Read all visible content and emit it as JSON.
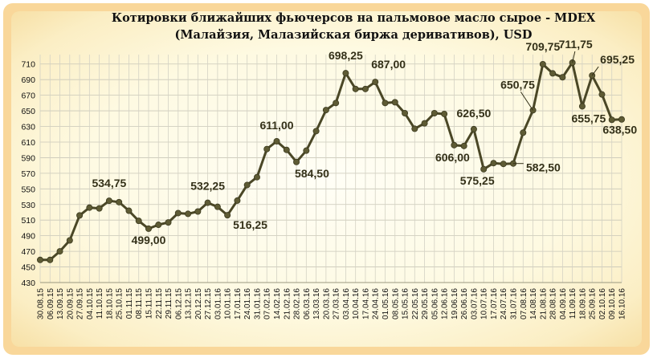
{
  "chart_data": {
    "type": "line",
    "title": [
      "Котировки ближайших фьючерсов на пальмовое масло сырое - MDEX",
      "(Малайзия, Малазийская биржа деривативов), USD"
    ],
    "ylim": [
      430,
      720
    ],
    "yticks": [
      430,
      450,
      470,
      490,
      510,
      530,
      550,
      570,
      590,
      610,
      630,
      650,
      670,
      690,
      710
    ],
    "grid": true,
    "x": [
      "30.08.15",
      "06.09.15",
      "13.09.15",
      "20.09.15",
      "27.09.15",
      "04.10.15",
      "11.10.15",
      "18.10.15",
      "25.10.15",
      "01.11.15",
      "08.11.15",
      "15.11.15",
      "22.11.15",
      "29.11.15",
      "06.12.15",
      "13.12.15",
      "20.12.15",
      "27.12.15",
      "03.01.16",
      "10.01.16",
      "17.01.16",
      "24.01.16",
      "31.01.16",
      "07.02.16",
      "14.02.16",
      "21.02.16",
      "28.02.16",
      "06.03.16",
      "13.03.16",
      "20.03.16",
      "27.03.16",
      "03.04.16",
      "10.04.16",
      "17.04.16",
      "24.04.16",
      "01.05.16",
      "08.05.16",
      "15.05.16",
      "22.05.16",
      "29.05.16",
      "05.06.16",
      "12.06.16",
      "19.06.16",
      "26.06.16",
      "03.07.16",
      "10.07.16",
      "17.07.16",
      "24.07.16",
      "31.07.16",
      "07.08.16",
      "14.08.16",
      "21.08.16",
      "28.08.16",
      "04.09.16",
      "11.09.16",
      "18.09.16",
      "25.09.16",
      "02.10.16",
      "09.10.16",
      "16.10.16"
    ],
    "values": [
      459,
      459,
      470,
      484,
      516,
      526,
      525,
      534.75,
      533,
      522,
      509,
      499,
      504,
      507,
      519,
      518,
      521,
      532.25,
      527,
      516.25,
      535,
      555,
      565,
      601,
      611,
      600,
      584.5,
      599,
      624,
      651,
      660,
      698.25,
      678,
      678,
      687,
      660,
      661,
      647,
      627,
      634,
      647,
      646,
      606,
      605,
      626.5,
      575.25,
      583,
      582,
      582.5,
      622,
      650.75,
      709.75,
      698,
      693,
      711.75,
      655.75,
      695.25,
      671,
      638.5,
      639
    ],
    "labels": [
      {
        "i": 7,
        "text": "534,75"
      },
      {
        "i": 11,
        "text": "499,00"
      },
      {
        "i": 17,
        "text": "532,25"
      },
      {
        "i": 19,
        "text": "516,25"
      },
      {
        "i": 24,
        "text": "611,00"
      },
      {
        "i": 26,
        "text": "584,50"
      },
      {
        "i": 31,
        "text": "698,25"
      },
      {
        "i": 34,
        "text": "687,00"
      },
      {
        "i": 42,
        "text": "606,00"
      },
      {
        "i": 44,
        "text": "626,50"
      },
      {
        "i": 45,
        "text": "575,25"
      },
      {
        "i": 48,
        "text": "582,50"
      },
      {
        "i": 50,
        "text": "650,75"
      },
      {
        "i": 51,
        "text": "709,75"
      },
      {
        "i": 54,
        "text": "711,75"
      },
      {
        "i": 55,
        "text": "655,75"
      },
      {
        "i": 56,
        "text": "695,25"
      },
      {
        "i": 58,
        "text": "638,50"
      }
    ],
    "line_color": "#4a4726",
    "marker_color": "#5e5b34"
  }
}
